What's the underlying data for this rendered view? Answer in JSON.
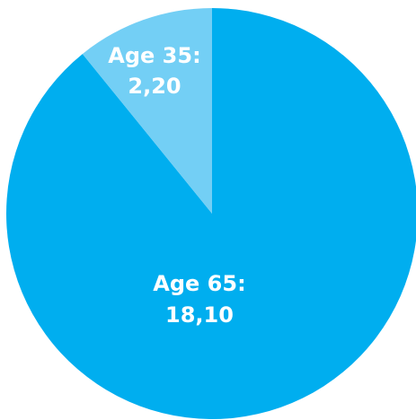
{
  "chart_data": {
    "type": "pie",
    "title": "",
    "slices": [
      {
        "label": "Age 65",
        "value": 18.1,
        "value_text": "18,10",
        "color": "#00aeef"
      },
      {
        "label": "Age 35",
        "value": 2.2,
        "value_text": "2,20",
        "color": "#73cff5"
      }
    ],
    "start": "top",
    "direction": "clockwise"
  }
}
